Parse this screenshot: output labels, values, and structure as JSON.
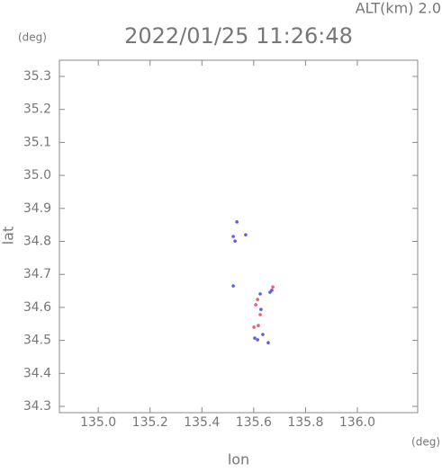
{
  "chart_data": {
    "type": "scatter",
    "title": "2022/01/25 11:26:48",
    "subtitle": "ALT(km) 2.0",
    "y_unit": "(deg)",
    "x_unit": "(deg)",
    "x_label": "lon",
    "y_label": "lat",
    "xlim": [
      134.85,
      136.233
    ],
    "ylim": [
      34.281,
      35.349
    ],
    "xticks": [
      {
        "value": 135.0,
        "label": "135.0"
      },
      135.2,
      135.4,
      135.6,
      135.8,
      {
        "value": 136.0,
        "label": "136.0"
      }
    ],
    "yticks": [
      34.3,
      34.4,
      34.5,
      34.6,
      34.7,
      34.8,
      34.9,
      {
        "value": 35.0,
        "label": "35.0"
      },
      35.1,
      35.2,
      35.3
    ],
    "series": [
      {
        "color": "#5a5af0",
        "x": [
          135.535,
          135.521,
          135.528,
          135.569,
          135.521,
          135.625,
          135.628,
          135.604,
          135.615,
          135.635,
          135.656,
          135.67,
          135.663
        ],
        "values": [
          34.859,
          34.815,
          34.801,
          34.82,
          34.665,
          34.641,
          34.594,
          34.507,
          34.502,
          34.518,
          34.493,
          34.652,
          34.646
        ]
      },
      {
        "color": "#f05a78",
        "x": [
          135.615,
          135.608,
          135.625,
          135.618,
          135.674,
          135.601
        ],
        "values": [
          34.624,
          34.608,
          34.578,
          34.545,
          34.662,
          34.54
        ]
      }
    ]
  }
}
